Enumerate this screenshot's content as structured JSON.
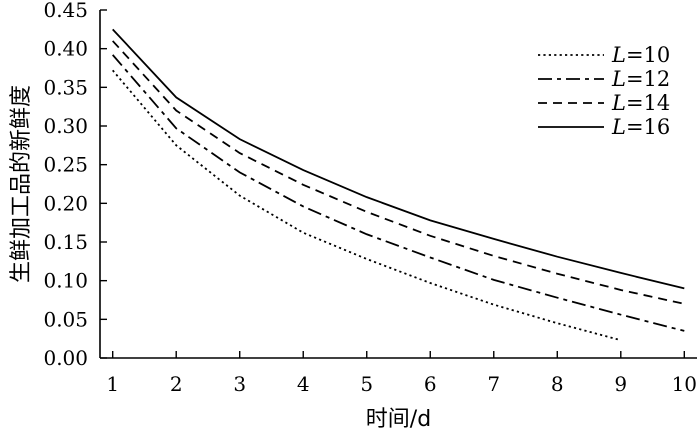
{
  "chart_data": {
    "type": "line",
    "title": "",
    "xlabel": "时间/d",
    "ylabel": "生鲜加工品的新鲜度",
    "xlim": [
      0.8,
      10.2
    ],
    "ylim": [
      0,
      0.45
    ],
    "xticks": [
      1,
      2,
      3,
      4,
      5,
      6,
      7,
      8,
      9,
      10
    ],
    "yticks": [
      0.0,
      0.05,
      0.1,
      0.15,
      0.2,
      0.25,
      0.3,
      0.35,
      0.4,
      0.45
    ],
    "ytick_labels": [
      "0.00",
      "0.05",
      "0.10",
      "0.15",
      "0.20",
      "0.25",
      "0.30",
      "0.35",
      "0.40",
      "0.45"
    ],
    "grid": false,
    "legend": "top-right",
    "series": [
      {
        "name": "L=10",
        "legend_var": "L",
        "legend_value": "=10",
        "dash": "dotted",
        "x": [
          1,
          2,
          3,
          4,
          5,
          6,
          7,
          8,
          9
        ],
        "values": [
          0.372,
          0.275,
          0.21,
          0.162,
          0.128,
          0.097,
          0.069,
          0.045,
          0.023
        ]
      },
      {
        "name": "L=12",
        "legend_var": "L",
        "legend_value": "=12",
        "dash": "long-dash-dot",
        "x": [
          1,
          2,
          3,
          4,
          5,
          6,
          7,
          8,
          9,
          10
        ],
        "values": [
          0.392,
          0.297,
          0.24,
          0.196,
          0.16,
          0.13,
          0.101,
          0.078,
          0.056,
          0.035
        ]
      },
      {
        "name": "L=14",
        "legend_var": "L",
        "legend_value": "=14",
        "dash": "dashed",
        "x": [
          1,
          2,
          3,
          4,
          5,
          6,
          7,
          8,
          9,
          10
        ],
        "values": [
          0.41,
          0.32,
          0.265,
          0.224,
          0.189,
          0.158,
          0.132,
          0.109,
          0.088,
          0.07
        ]
      },
      {
        "name": "L=16",
        "legend_var": "L",
        "legend_value": "=16",
        "dash": "solid",
        "x": [
          1,
          2,
          3,
          4,
          5,
          6,
          7,
          8,
          9,
          10
        ],
        "values": [
          0.425,
          0.337,
          0.283,
          0.243,
          0.208,
          0.178,
          0.154,
          0.131,
          0.11,
          0.09
        ]
      }
    ]
  }
}
